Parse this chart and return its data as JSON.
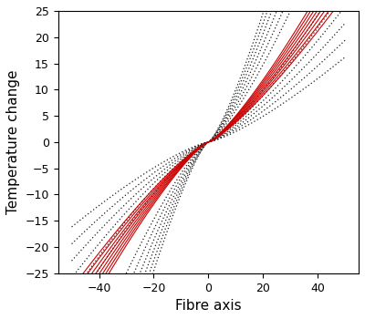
{
  "title": "",
  "xlabel": "Fibre axis",
  "ylabel": "Temperature change",
  "xlim": [
    -55,
    55
  ],
  "ylim": [
    -25,
    25
  ],
  "xticks": [
    -40,
    -20,
    0,
    20,
    40
  ],
  "yticks": [
    -25,
    -20,
    -15,
    -10,
    -5,
    0,
    5,
    10,
    15,
    20,
    25
  ],
  "x_start": -50,
  "x_end": 50,
  "red_color": "#cc0000",
  "black_color": "#1a1a1a",
  "background_color": "#ffffff",
  "fontsize_label": 11,
  "fontsize_tick": 9,
  "red_params": [
    [
      0.28,
      1.2
    ],
    [
      0.27,
      1.2
    ],
    [
      0.26,
      1.2
    ],
    [
      0.25,
      1.2
    ],
    [
      0.24,
      1.2
    ],
    [
      0.23,
      1.2
    ],
    [
      0.22,
      1.2
    ],
    [
      0.21,
      1.2
    ]
  ],
  "black_params": [
    [
      0.2,
      1.2
    ],
    [
      0.18,
      1.2
    ],
    [
      0.16,
      1.2
    ],
    [
      0.14,
      1.2
    ],
    [
      0.12,
      1.2
    ],
    [
      0.3,
      1.2
    ],
    [
      0.33,
      1.2
    ],
    [
      0.36,
      1.2
    ],
    [
      0.39,
      1.2
    ],
    [
      0.42,
      1.2
    ],
    [
      0.45,
      1.2
    ],
    [
      0.48,
      1.2
    ]
  ]
}
